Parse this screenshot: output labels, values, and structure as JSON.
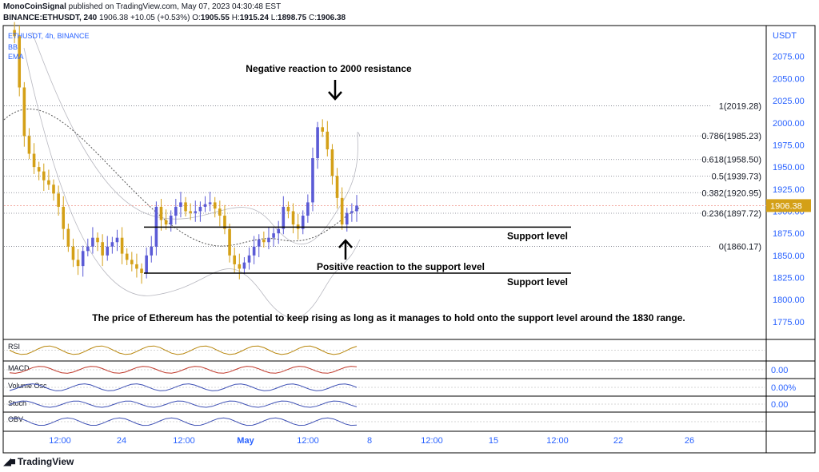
{
  "header": {
    "line1_user": "MonoCoinSignal",
    "line1_rest": "published on TradingView.com, May 07, 2023 04:30:48 EST",
    "symbol": "BINANCE:ETHUSDT, 240",
    "price": "1906.38",
    "change": "+10.05 (+0.53%)",
    "o_label": "O:",
    "o_val": "1905.55",
    "h_label": "H:",
    "h_val": "1915.24",
    "l_label": "L:",
    "l_val": "1898.75",
    "c_label": "C:",
    "c_val": "1906.38"
  },
  "legend": {
    "symbol": "ETHUSDT, 4h, BINANCE",
    "bb": "BB",
    "ema": "EMA"
  },
  "chart_data": {
    "type": "candlestick",
    "currency": "USDT",
    "ylim": [
      1755,
      2110
    ],
    "y_ticks": [
      1775,
      1800,
      1825,
      1850,
      1875,
      1900,
      1925,
      1950,
      1975,
      2000,
      2025,
      2050,
      2075
    ],
    "x_ticks": [
      "12:00",
      "24",
      "12:00",
      "May",
      "12:00",
      "8",
      "12:00",
      "15",
      "12:00",
      "22",
      "26"
    ],
    "last_price": "1906.38",
    "close_path": [
      2105,
      2098,
      2040,
      1985,
      1965,
      1950,
      1945,
      1935,
      1930,
      1920,
      1905,
      1880,
      1860,
      1845,
      1838,
      1855,
      1860,
      1870,
      1865,
      1850,
      1860,
      1865,
      1870,
      1852,
      1845,
      1840,
      1835,
      1830,
      1850,
      1860,
      1905,
      1890,
      1885,
      1895,
      1905,
      1910,
      1900,
      1898,
      1900,
      1905,
      1908,
      1910,
      1903,
      1895,
      1880,
      1850,
      1840,
      1835,
      1842,
      1850,
      1860,
      1868,
      1865,
      1870,
      1875,
      1880,
      1905,
      1900,
      1885,
      1880,
      1895,
      1910,
      1960,
      1995,
      1990,
      1970,
      1940,
      1915,
      1885,
      1898,
      1900,
      1906.38
    ],
    "fib_levels": [
      {
        "label": "1(2019.28)",
        "value": 2019.28
      },
      {
        "label": "0.786(1985.23)",
        "value": 1985.23
      },
      {
        "label": "0.618(1958.50)",
        "value": 1958.5
      },
      {
        "label": "0.5(1939.73)",
        "value": 1939.73
      },
      {
        "label": "0.382(1920.95)",
        "value": 1920.95
      },
      {
        "label": "0.236(1897.72)",
        "value": 1897.72
      },
      {
        "label": "0(1860.17)",
        "value": 1860.17
      }
    ],
    "support_levels": [
      {
        "label": "Support level",
        "value": 1882
      },
      {
        "label": "Support level",
        "value": 1830
      }
    ],
    "annotations": [
      {
        "text": "Negative reaction to 2000 resistance"
      },
      {
        "text": "Positive reaction to the support level"
      },
      {
        "text": "The price of Ethereum has the potential to keep rising as long as it manages to hold onto the support level around the 1830 range."
      }
    ],
    "indicators": [
      {
        "name": "RSI"
      },
      {
        "name": "MACD",
        "value": "0.00"
      },
      {
        "name": "Volume Osc",
        "value": "0.00%"
      },
      {
        "name": "Stoch",
        "value": "0.00"
      },
      {
        "name": "OBV"
      }
    ],
    "colors": {
      "up": "#5b5bd6",
      "down": "#d4a017",
      "fib": "#787b86",
      "support": "#000000",
      "axis_text": "#2962ff"
    }
  },
  "footer": {
    "brand": "TradingView"
  }
}
